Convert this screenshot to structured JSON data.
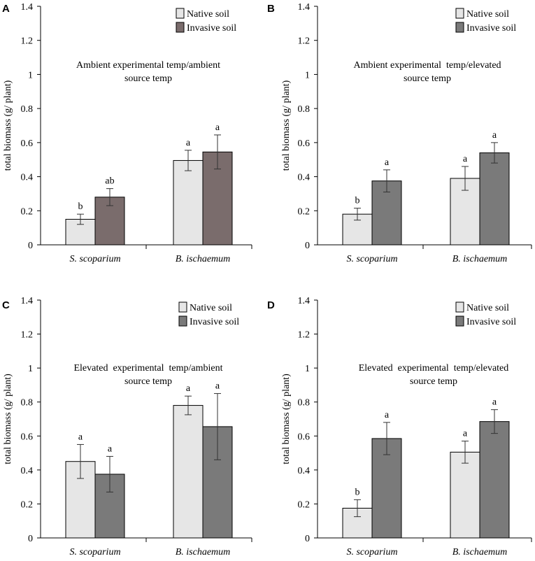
{
  "series_colors": {
    "native": "#e6e6e6",
    "invasive_a": "#7a6c6c",
    "invasive": "#7a7a7a"
  },
  "chart_data": [
    {
      "panel": "A",
      "type": "bar",
      "title_lines": [
        "Ambient experimental temp/ambient",
        "source temp"
      ],
      "ylabel": "total biomass (g/ plant)",
      "ylim": [
        0,
        1.4
      ],
      "yticks": [
        "0",
        "0.2",
        "0.4",
        "0.6",
        "0.8",
        "1",
        "1.2",
        "1.4"
      ],
      "categories": [
        "S. scoparium",
        "B. ischaemum"
      ],
      "legend": [
        "Native soil",
        "Invasive soil"
      ],
      "series": [
        {
          "name": "Native soil",
          "color": "#e6e6e6",
          "values": [
            0.15,
            0.495
          ],
          "errors": [
            0.03,
            0.06
          ],
          "letters": [
            "b",
            "a"
          ]
        },
        {
          "name": "Invasive soil",
          "color": "#7a6c6c",
          "values": [
            0.28,
            0.545
          ],
          "errors": [
            0.05,
            0.1
          ],
          "letters": [
            "ab",
            "a"
          ]
        }
      ]
    },
    {
      "panel": "B",
      "type": "bar",
      "title_lines": [
        "Ambient experimental  temp/elevated",
        "source temp"
      ],
      "ylabel": "total biomass (g/ plant)",
      "ylim": [
        0,
        1.4
      ],
      "yticks": [
        "0",
        "0.2",
        "0.4",
        "0.6",
        "0.8",
        "1",
        "1.2",
        "1.4"
      ],
      "categories": [
        "S. scoparium",
        "B. ischaemum"
      ],
      "legend": [
        "Native soil",
        "Invasive soil"
      ],
      "series": [
        {
          "name": "Native soil",
          "color": "#e6e6e6",
          "values": [
            0.18,
            0.39
          ],
          "errors": [
            0.035,
            0.07
          ],
          "letters": [
            "b",
            "a"
          ]
        },
        {
          "name": "Invasive soil",
          "color": "#7a7a7a",
          "values": [
            0.375,
            0.54
          ],
          "errors": [
            0.065,
            0.06
          ],
          "letters": [
            "a",
            "a"
          ]
        }
      ]
    },
    {
      "panel": "C",
      "type": "bar",
      "title_lines": [
        "Elevated  experimental  temp/ambient",
        "source temp"
      ],
      "ylabel": "total biomass (g/ plant)",
      "ylim": [
        0,
        1.4
      ],
      "yticks": [
        "0",
        "0.2",
        "0.4",
        "0.6",
        "0.8",
        "1",
        "1.2",
        "1.4"
      ],
      "categories": [
        "S. scoparium",
        "B. ischaemum"
      ],
      "legend": [
        "Native soil",
        "Invasive soil"
      ],
      "series": [
        {
          "name": "Native soil",
          "color": "#e6e6e6",
          "values": [
            0.45,
            0.78
          ],
          "errors": [
            0.1,
            0.055
          ],
          "letters": [
            "a",
            "a"
          ]
        },
        {
          "name": "Invasive soil",
          "color": "#7a7a7a",
          "values": [
            0.375,
            0.655
          ],
          "errors": [
            0.105,
            0.195
          ],
          "letters": [
            "a",
            "a"
          ]
        }
      ]
    },
    {
      "panel": "D",
      "type": "bar",
      "title_lines": [
        "Elevated  experimental  temp/elevated",
        "source temp"
      ],
      "ylabel": "total biomass (g/ plant)",
      "ylim": [
        0,
        1.4
      ],
      "yticks": [
        "0",
        "0.2",
        "0.4",
        "0.6",
        "0.8",
        "1",
        "1.2",
        "1.4"
      ],
      "categories": [
        "S. scoparium",
        "B. ischaemum"
      ],
      "legend": [
        "Native soil",
        "Invasive soil"
      ],
      "series": [
        {
          "name": "Native soil",
          "color": "#e6e6e6",
          "values": [
            0.175,
            0.505
          ],
          "errors": [
            0.05,
            0.065
          ],
          "letters": [
            "b",
            "a"
          ]
        },
        {
          "name": "Invasive soil",
          "color": "#7a7a7a",
          "values": [
            0.585,
            0.685
          ],
          "errors": [
            0.095,
            0.07
          ],
          "letters": [
            "a",
            "a"
          ]
        }
      ]
    }
  ]
}
